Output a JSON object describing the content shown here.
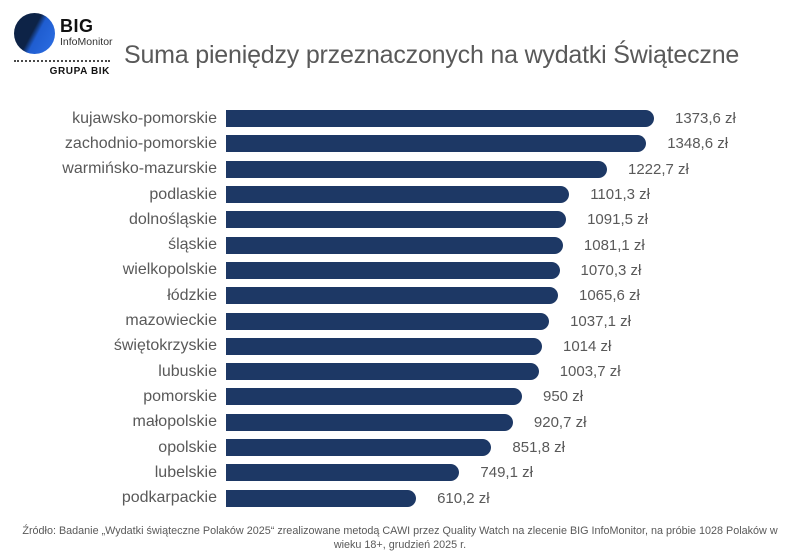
{
  "header": {
    "logo": {
      "brand": "BIG",
      "sub_brand": "InfoMonitor",
      "group": "GRUPA BIK"
    },
    "title": "Suma pieniędzy przeznaczonych na wydatki Świąteczne"
  },
  "chart_data": {
    "type": "bar",
    "orientation": "horizontal",
    "title": "Suma pieniędzy przeznaczonych na wydatki Świąteczne",
    "xlabel": "",
    "ylabel": "",
    "xlim": [
      0,
      1400
    ],
    "grid": false,
    "legend": false,
    "bar_color": "#1d3865",
    "unit": "zł",
    "categories": [
      "kujawsko-pomorskie",
      "zachodnio-pomorskie",
      "warmińsko-mazurskie",
      "podlaskie",
      "dolnośląskie",
      "śląskie",
      "wielkopolskie",
      "łódzkie",
      "mazowieckie",
      "świętokrzyskie",
      "lubuskie",
      "pomorskie",
      "małopolskie",
      "opolskie",
      "lubelskie",
      "podkarpackie"
    ],
    "values": [
      1373.6,
      1348.6,
      1222.7,
      1101.3,
      1091.5,
      1081.1,
      1070.3,
      1065.6,
      1037.1,
      1014,
      1003.7,
      950,
      920.7,
      851.8,
      749.1,
      610.2
    ],
    "value_labels": [
      "1373,6 zł",
      "1348,6 zł",
      "1222,7 zł",
      "1101,3 zł",
      "1091,5 zł",
      "1081,1 zł",
      "1070,3 zł",
      "1065,6 zł",
      "1037,1 zł",
      "1014 zł",
      "1003,7 zł",
      "950 zł",
      "920,7 zł",
      "851,8 zł",
      "749,1 zł",
      "610,2 zł"
    ]
  },
  "footer": {
    "source_line1": "Źródło: Badanie „Wydatki świąteczne Polaków 2025“ zrealizowane metodą CAWI przez Quality Watch na zlecenie BIG InfoMonitor, na próbie 1028 Polaków w",
    "source_line2": "wieku 18+, grudzień 2025 r."
  }
}
